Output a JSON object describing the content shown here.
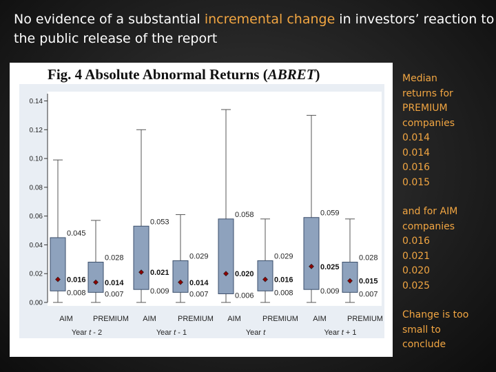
{
  "slide": {
    "title_pre": "No evidence of a substantial ",
    "title_highlight": "incremental change",
    "title_post": " in investors’ reaction to the public release of the report",
    "highlight_color": "#f2a642",
    "text_color": "#ffffff"
  },
  "sidebar": {
    "premium_heading": [
      "Median",
      "returns for",
      "PREMIUM",
      "companies"
    ],
    "premium_values": [
      "0.014",
      "0.014",
      "0.016",
      "0.015"
    ],
    "aim_heading": [
      "and for AIM",
      "companies"
    ],
    "aim_values": [
      "0.016",
      "0.021",
      "0.020",
      "0.025"
    ],
    "conclusion": [
      "Change is too",
      "small to",
      "conclude"
    ]
  },
  "chart_data": {
    "type": "box",
    "title": "Fig. 4 Absolute Abnormal Returns (",
    "title_italic": "ABRET",
    "title_close": ")",
    "ylim": [
      0,
      0.145
    ],
    "yticks": [
      0.0,
      0.02,
      0.04,
      0.06,
      0.08,
      0.1,
      0.12,
      0.14
    ],
    "ytick_labels": [
      "0.00",
      "0.02",
      "0.04",
      "0.06",
      "0.08",
      "0.10",
      "0.12",
      "0.14"
    ],
    "grid": false,
    "box_color": "#8ea2bd",
    "box_stroke": "#3b4e6b",
    "median_marker_color": "#8b0000",
    "groups": [
      {
        "label_prefix": "Year ",
        "label_var": "t",
        "label_suffix": " - 2"
      },
      {
        "label_prefix": "Year ",
        "label_var": "t",
        "label_suffix": " - 1"
      },
      {
        "label_prefix": "Year ",
        "label_var": "t",
        "label_suffix": ""
      },
      {
        "label_prefix": "Year ",
        "label_var": "t",
        "label_suffix": " + 1"
      }
    ],
    "boxes": [
      {
        "category": "AIM",
        "group": 0,
        "low": 0.0,
        "q1": 0.008,
        "median": 0.016,
        "q3": 0.045,
        "high": 0.099,
        "q1_label": "0.008",
        "median_label": "0.016",
        "q3_label": "0.045"
      },
      {
        "category": "PREMIUM",
        "group": 0,
        "low": 0.0,
        "q1": 0.007,
        "median": 0.014,
        "q3": 0.028,
        "high": 0.057,
        "q1_label": "0.007",
        "median_label": "0.014",
        "q3_label": "0.028"
      },
      {
        "category": "AIM",
        "group": 1,
        "low": 0.0,
        "q1": 0.009,
        "median": 0.021,
        "q3": 0.053,
        "high": 0.12,
        "q1_label": "0.009",
        "median_label": "0.021",
        "q3_label": "0.053"
      },
      {
        "category": "PREMIUM",
        "group": 1,
        "low": 0.0,
        "q1": 0.007,
        "median": 0.014,
        "q3": 0.029,
        "high": 0.061,
        "q1_label": "0.007",
        "median_label": "0.014",
        "q3_label": "0.029"
      },
      {
        "category": "AIM",
        "group": 2,
        "low": 0.0,
        "q1": 0.006,
        "median": 0.02,
        "q3": 0.058,
        "high": 0.134,
        "q1_label": "0.006",
        "median_label": "0.020",
        "q3_label": "0.058"
      },
      {
        "category": "PREMIUM",
        "group": 2,
        "low": 0.0,
        "q1": 0.008,
        "median": 0.016,
        "q3": 0.029,
        "high": 0.058,
        "q1_label": "0.008",
        "median_label": "0.016",
        "q3_label": "0.029"
      },
      {
        "category": "AIM",
        "group": 3,
        "low": 0.0,
        "q1": 0.009,
        "median": 0.025,
        "q3": 0.059,
        "high": 0.13,
        "q1_label": "0.009",
        "median_label": "0.025",
        "q3_label": "0.059"
      },
      {
        "category": "PREMIUM",
        "group": 3,
        "low": 0.0,
        "q1": 0.007,
        "median": 0.015,
        "q3": 0.028,
        "high": 0.058,
        "q1_label": "0.007",
        "median_label": "0.015",
        "q3_label": "0.028"
      }
    ]
  }
}
